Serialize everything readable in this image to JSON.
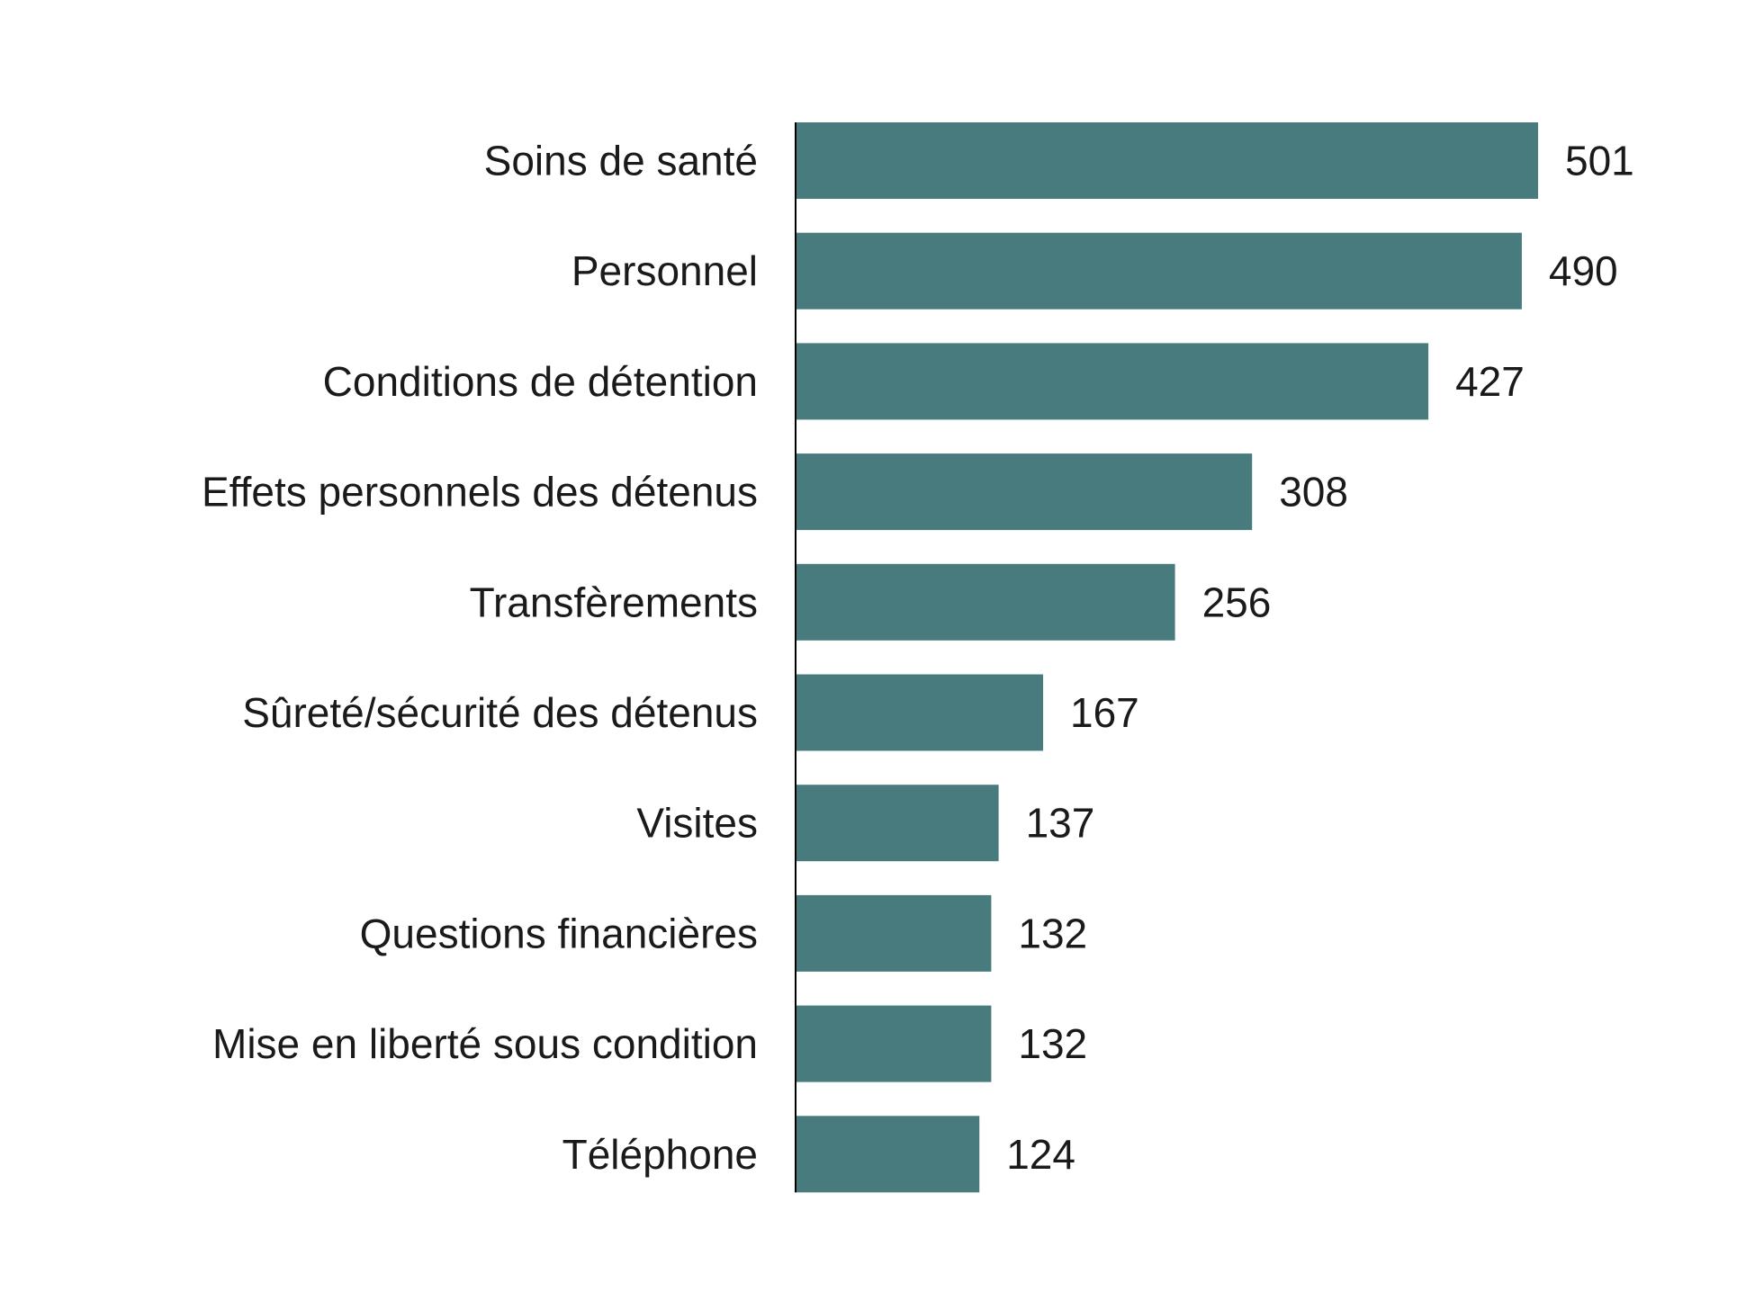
{
  "chart_data": {
    "type": "bar",
    "orientation": "horizontal",
    "title": "",
    "xlabel": "",
    "ylabel": "",
    "categories": [
      "Soins de santé",
      "Personnel",
      "Conditions de détention",
      "Effets personnels des détenus",
      "Transfèrements",
      "Sûreté/sécurité des détenus",
      "Visites",
      "Questions financières",
      "Mise en liberté sous condition",
      "Téléphone"
    ],
    "values": [
      501,
      490,
      427,
      308,
      256,
      167,
      137,
      132,
      132,
      124
    ],
    "value_labels": [
      "501",
      "490",
      "427",
      "308",
      "256",
      "167",
      "137",
      "132",
      "132",
      "124"
    ],
    "xlim": [
      0,
      501
    ],
    "grid": false,
    "legend": "none",
    "bar_color": "#477b7e",
    "axis_color": "#000000"
  }
}
